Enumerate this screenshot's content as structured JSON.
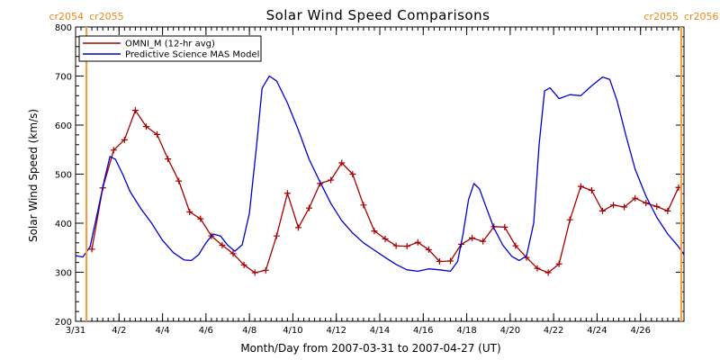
{
  "chart_data": {
    "type": "line",
    "title": "Solar Wind Speed Comparisons",
    "xlabel": "Month/Day from 2007-03-31 to 2007-04-27 (UT)",
    "ylabel": "Solar Wind Speed (km/s)",
    "ylim": [
      200,
      800
    ],
    "xlim": [
      "2007-03-31",
      "2007-04-28"
    ],
    "grid": false,
    "legend_position": "top-left",
    "y_ticks": [
      200,
      300,
      400,
      500,
      600,
      700,
      800
    ],
    "x_ticks": [
      {
        "date": "2007-03-31",
        "label": "3/31"
      },
      {
        "date": "2007-04-02",
        "label": "4/2"
      },
      {
        "date": "2007-04-04",
        "label": "4/4"
      },
      {
        "date": "2007-04-06",
        "label": "4/6"
      },
      {
        "date": "2007-04-08",
        "label": "4/8"
      },
      {
        "date": "2007-04-10",
        "label": "4/10"
      },
      {
        "date": "2007-04-12",
        "label": "4/12"
      },
      {
        "date": "2007-04-14",
        "label": "4/14"
      },
      {
        "date": "2007-04-16",
        "label": "4/16"
      },
      {
        "date": "2007-04-18",
        "label": "4/18"
      },
      {
        "date": "2007-04-20",
        "label": "4/20"
      },
      {
        "date": "2007-04-22",
        "label": "4/22"
      },
      {
        "date": "2007-04-24",
        "label": "4/24"
      },
      {
        "date": "2007-04-26",
        "label": "4/26"
      }
    ],
    "rotation_markers": [
      {
        "date": "2007-03-31 12:00",
        "label_left": "cr2054",
        "label_right": "cr2055"
      },
      {
        "date": "2007-04-27 21:00",
        "label_left": "cr2055",
        "label_right": "cr2056"
      }
    ],
    "series": [
      {
        "name": "OMNI_M (12-hr avg)",
        "color": "#a50000",
        "marker": "plus",
        "points": [
          [
            "2007-03-31 18:00",
            347
          ],
          [
            "2007-04-01 06:00",
            472
          ],
          [
            "2007-04-01 18:00",
            549
          ],
          [
            "2007-04-02 06:00",
            570
          ],
          [
            "2007-04-02 18:00",
            630
          ],
          [
            "2007-04-03 06:00",
            597
          ],
          [
            "2007-04-03 18:00",
            581
          ],
          [
            "2007-04-04 06:00",
            531
          ],
          [
            "2007-04-04 18:00",
            486
          ],
          [
            "2007-04-05 06:00",
            423
          ],
          [
            "2007-04-05 18:00",
            409
          ],
          [
            "2007-04-06 06:00",
            374
          ],
          [
            "2007-04-06 18:00",
            355
          ],
          [
            "2007-04-07 06:00",
            338
          ],
          [
            "2007-04-07 18:00",
            315
          ],
          [
            "2007-04-08 06:00",
            299
          ],
          [
            "2007-04-08 18:00",
            304
          ],
          [
            "2007-04-09 06:00",
            374
          ],
          [
            "2007-04-09 18:00",
            461
          ],
          [
            "2007-04-10 06:00",
            391
          ],
          [
            "2007-04-10 18:00",
            431
          ],
          [
            "2007-04-11 06:00",
            481
          ],
          [
            "2007-04-11 18:00",
            488
          ],
          [
            "2007-04-12 06:00",
            523
          ],
          [
            "2007-04-12 18:00",
            500
          ],
          [
            "2007-04-13 06:00",
            437
          ],
          [
            "2007-04-13 18:00",
            384
          ],
          [
            "2007-04-14 06:00",
            368
          ],
          [
            "2007-04-14 18:00",
            354
          ],
          [
            "2007-04-15 06:00",
            353
          ],
          [
            "2007-04-15 18:00",
            361
          ],
          [
            "2007-04-16 06:00",
            346
          ],
          [
            "2007-04-16 18:00",
            322
          ],
          [
            "2007-04-17 06:00",
            323
          ],
          [
            "2007-04-17 18:00",
            357
          ],
          [
            "2007-04-18 06:00",
            370
          ],
          [
            "2007-04-18 18:00",
            363
          ],
          [
            "2007-04-19 06:00",
            393
          ],
          [
            "2007-04-19 18:00",
            392
          ],
          [
            "2007-04-20 06:00",
            354
          ],
          [
            "2007-04-20 18:00",
            330
          ],
          [
            "2007-04-21 06:00",
            308
          ],
          [
            "2007-04-21 18:00",
            299
          ],
          [
            "2007-04-22 06:00",
            317
          ],
          [
            "2007-04-22 18:00",
            407
          ],
          [
            "2007-04-23 06:00",
            475
          ],
          [
            "2007-04-23 18:00",
            467
          ],
          [
            "2007-04-24 06:00",
            425
          ],
          [
            "2007-04-24 18:00",
            437
          ],
          [
            "2007-04-25 06:00",
            433
          ],
          [
            "2007-04-25 18:00",
            451
          ],
          [
            "2007-04-26 06:00",
            441
          ],
          [
            "2007-04-26 18:00",
            434
          ],
          [
            "2007-04-27 06:00",
            425
          ],
          [
            "2007-04-27 18:00",
            473
          ]
        ]
      },
      {
        "name": "Predictive Science MAS Model",
        "color": "#0000cc",
        "marker": "none",
        "points": [
          [
            "2007-03-31 00:00",
            334
          ],
          [
            "2007-03-31 08:00",
            331
          ],
          [
            "2007-03-31 16:00",
            352
          ],
          [
            "2007-04-01 00:00",
            420
          ],
          [
            "2007-04-01 08:00",
            490
          ],
          [
            "2007-04-01 14:00",
            536
          ],
          [
            "2007-04-01 20:00",
            530
          ],
          [
            "2007-04-02 04:00",
            500
          ],
          [
            "2007-04-02 12:00",
            465
          ],
          [
            "2007-04-03 00:00",
            430
          ],
          [
            "2007-04-03 12:00",
            400
          ],
          [
            "2007-04-04 00:00",
            365
          ],
          [
            "2007-04-04 12:00",
            340
          ],
          [
            "2007-04-05 00:00",
            325
          ],
          [
            "2007-04-05 08:00",
            324
          ],
          [
            "2007-04-05 16:00",
            336
          ],
          [
            "2007-04-06 00:00",
            360
          ],
          [
            "2007-04-06 08:00",
            378
          ],
          [
            "2007-04-06 16:00",
            374
          ],
          [
            "2007-04-07 00:00",
            355
          ],
          [
            "2007-04-07 08:00",
            343
          ],
          [
            "2007-04-07 16:00",
            356
          ],
          [
            "2007-04-08 00:00",
            420
          ],
          [
            "2007-04-08 08:00",
            560
          ],
          [
            "2007-04-08 14:00",
            675
          ],
          [
            "2007-04-08 22:00",
            700
          ],
          [
            "2007-04-09 06:00",
            690
          ],
          [
            "2007-04-09 18:00",
            645
          ],
          [
            "2007-04-10 06:00",
            590
          ],
          [
            "2007-04-10 18:00",
            530
          ],
          [
            "2007-04-11 06:00",
            484
          ],
          [
            "2007-04-11 18:00",
            440
          ],
          [
            "2007-04-12 06:00",
            405
          ],
          [
            "2007-04-12 18:00",
            380
          ],
          [
            "2007-04-13 06:00",
            360
          ],
          [
            "2007-04-13 18:00",
            345
          ],
          [
            "2007-04-14 06:00",
            330
          ],
          [
            "2007-04-14 18:00",
            316
          ],
          [
            "2007-04-15 06:00",
            305
          ],
          [
            "2007-04-15 18:00",
            302
          ],
          [
            "2007-04-16 06:00",
            307
          ],
          [
            "2007-04-16 18:00",
            305
          ],
          [
            "2007-04-17 06:00",
            302
          ],
          [
            "2007-04-17 14:00",
            322
          ],
          [
            "2007-04-17 20:00",
            378
          ],
          [
            "2007-04-18 02:00",
            448
          ],
          [
            "2007-04-18 08:00",
            481
          ],
          [
            "2007-04-18 14:00",
            470
          ],
          [
            "2007-04-18 20:00",
            440
          ],
          [
            "2007-04-19 06:00",
            390
          ],
          [
            "2007-04-19 16:00",
            355
          ],
          [
            "2007-04-20 02:00",
            332
          ],
          [
            "2007-04-20 10:00",
            324
          ],
          [
            "2007-04-20 18:00",
            333
          ],
          [
            "2007-04-21 02:00",
            400
          ],
          [
            "2007-04-21 08:00",
            560
          ],
          [
            "2007-04-21 14:00",
            670
          ],
          [
            "2007-04-21 20:00",
            676
          ],
          [
            "2007-04-22 06:00",
            654
          ],
          [
            "2007-04-22 18:00",
            662
          ],
          [
            "2007-04-23 06:00",
            660
          ],
          [
            "2007-04-23 18:00",
            680
          ],
          [
            "2007-04-24 06:00",
            698
          ],
          [
            "2007-04-24 14:00",
            693
          ],
          [
            "2007-04-24 22:00",
            650
          ],
          [
            "2007-04-25 08:00",
            578
          ],
          [
            "2007-04-25 18:00",
            510
          ],
          [
            "2007-04-26 06:00",
            455
          ],
          [
            "2007-04-26 18:00",
            412
          ],
          [
            "2007-04-27 06:00",
            378
          ],
          [
            "2007-04-27 18:00",
            352
          ],
          [
            "2007-04-28 00:00",
            336
          ]
        ]
      }
    ]
  }
}
